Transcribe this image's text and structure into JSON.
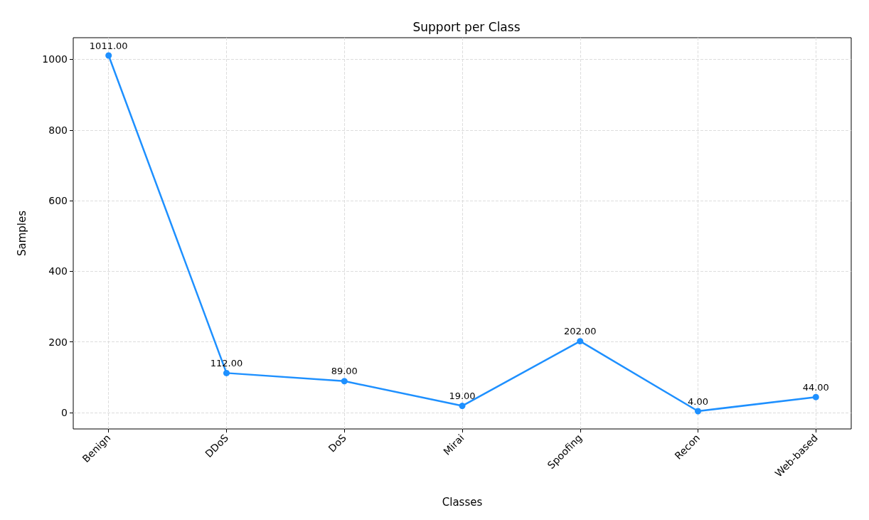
{
  "chart_data": {
    "type": "line",
    "title": "Support per Class",
    "xlabel": "Classes",
    "ylabel": "Samples",
    "categories": [
      "Benign",
      "DDoS",
      "DoS",
      "Mirai",
      "Spoofing",
      "Recon",
      "Web-based"
    ],
    "series": [
      {
        "color": "#1e90ff",
        "values": [
          1011,
          112,
          89,
          19,
          202,
          4,
          44
        ],
        "value_labels": [
          "1011.00",
          "112.00",
          "89.00",
          "19.00",
          "202.00",
          "4.00",
          "44.00"
        ]
      }
    ],
    "ylim": [
      -46.35,
      1061.35
    ],
    "yticks": [
      0,
      200,
      400,
      600,
      800,
      1000
    ],
    "grid": true,
    "marker": "circle",
    "line_style": "solid"
  }
}
